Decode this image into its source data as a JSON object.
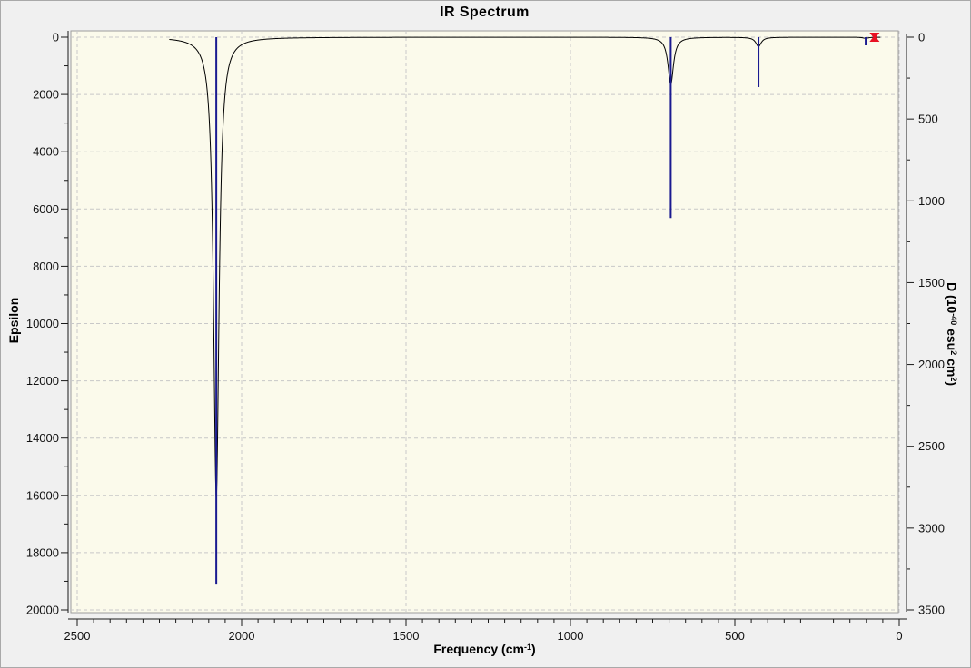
{
  "labels": {
    "title": "IR Spectrum",
    "x_pre": "Frequency (cm",
    "x_sup": "-1",
    "x_post": ")",
    "y_left": "Epsilon",
    "d_p1": "D (10",
    "d_s1": "-40",
    "d_p2": " esu",
    "d_s2": "2",
    "d_p3": " cm",
    "d_s3": "2",
    "d_p4": ")"
  },
  "chart_data": {
    "type": "line",
    "title": "IR Spectrum",
    "xlabel": "Frequency (cm-1)",
    "x_axis": {
      "min": 0,
      "max": 2500,
      "reversed": true,
      "major_ticks": [
        2500,
        2000,
        1500,
        1000,
        500,
        0
      ],
      "minor_step": 50
    },
    "y_left_axis": {
      "label": "Epsilon",
      "min": 0,
      "max": 20000,
      "inverted": true,
      "major_ticks": [
        0,
        2000,
        4000,
        6000,
        8000,
        10000,
        12000,
        14000,
        16000,
        18000,
        20000
      ],
      "minor_step": 1000
    },
    "y_right_axis": {
      "label": "D (10-40 esu2 cm2)",
      "min": 0,
      "max": 3500,
      "major_ticks": [
        0,
        500,
        1000,
        1500,
        2000,
        2500,
        3000,
        3500
      ],
      "minor_step": 250
    },
    "grid": true,
    "peaks": [
      {
        "frequency": 2077,
        "epsilon": 16100,
        "dipole_strength": 3340
      },
      {
        "frequency": 695,
        "epsilon": 1650,
        "dipole_strength": 1105
      },
      {
        "frequency": 428,
        "epsilon": 320,
        "dipole_strength": 305
      },
      {
        "frequency": 102,
        "epsilon": 40,
        "dipole_strength": 50
      }
    ],
    "curve": {
      "hwhm_cm1": 10,
      "freq_range": [
        57,
        2220
      ]
    },
    "selected_mode_marker": {
      "frequency": 75
    },
    "colors": {
      "curve": "#000000",
      "stick": "#1a1a90",
      "marker": "#e81123",
      "plot_bg": "#fbfaeb",
      "grid": "#c8c8c8",
      "frame": "#9c9c9c",
      "axis": "#1a1a1a"
    }
  }
}
